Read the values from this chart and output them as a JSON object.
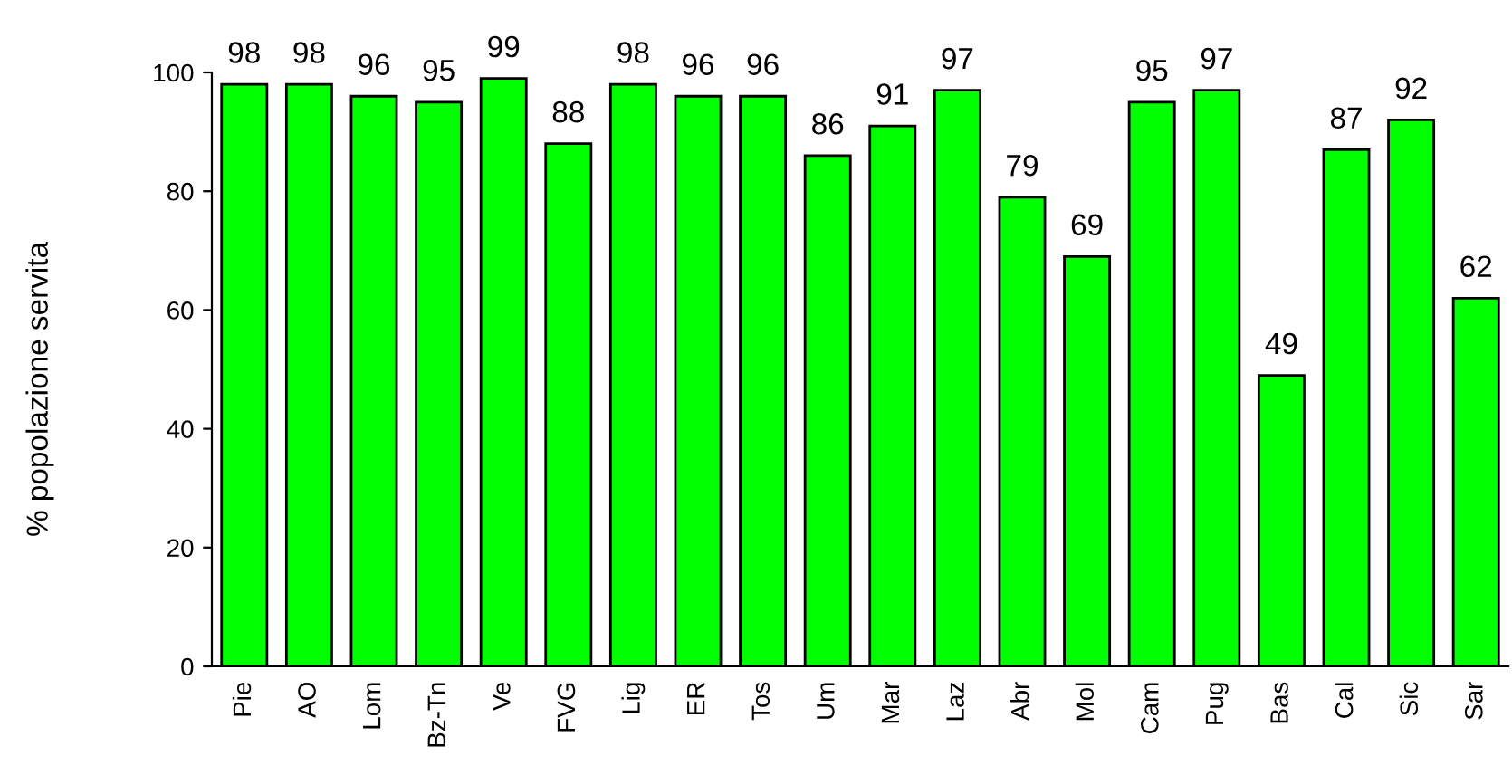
{
  "chart_data": {
    "type": "bar",
    "ylabel": "% popolazione servita",
    "categories": [
      "Pie",
      "AO",
      "Lom",
      "Bz-Tn",
      "Ve",
      "FVG",
      "Lig",
      "ER",
      "Tos",
      "Um",
      "Mar",
      "Laz",
      "Abr",
      "Mol",
      "Cam",
      "Pug",
      "Bas",
      "Cal",
      "Sic",
      "Sar"
    ],
    "values": [
      98,
      98,
      96,
      95,
      99,
      88,
      98,
      96,
      96,
      86,
      91,
      97,
      79,
      69,
      95,
      97,
      49,
      87,
      92,
      62
    ],
    "color": "#00ff00",
    "ylim": [
      0,
      100
    ],
    "yticks": [
      0,
      20,
      40,
      60,
      80,
      100
    ],
    "grid": false,
    "data_labels": true
  }
}
